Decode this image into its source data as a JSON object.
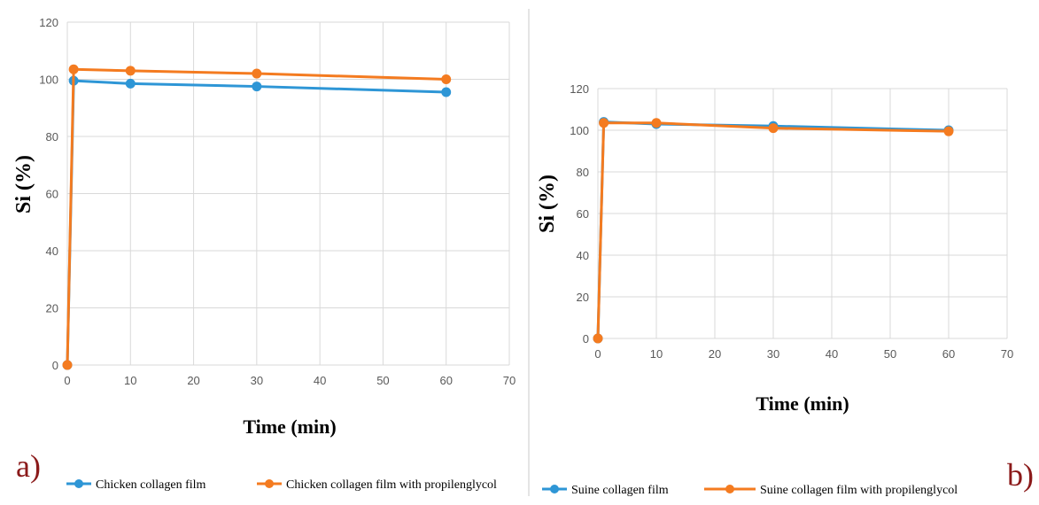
{
  "colors": {
    "blue": "#2E96D6",
    "orange": "#F47B20",
    "grid": "#D9D9D9",
    "divider": "#C8C8C8"
  },
  "chart_data": [
    {
      "type": "line",
      "panel_label": "a)",
      "xlabel": "Time (min)",
      "ylabel": "Si (%)",
      "xlim": [
        0,
        70
      ],
      "ylim": [
        0,
        120
      ],
      "xticks": [
        0,
        10,
        20,
        30,
        40,
        50,
        60,
        70
      ],
      "yticks": [
        0,
        20,
        40,
        60,
        80,
        100,
        120
      ],
      "grid": true,
      "legend_position": "bottom",
      "series": [
        {
          "name": "Chicken collagen film",
          "color": "#2E96D6",
          "x": [
            0,
            1,
            10,
            30,
            60
          ],
          "y": [
            0,
            99.5,
            98.5,
            97.5,
            95.5
          ]
        },
        {
          "name": "Chicken collagen film with propilenglycol",
          "color": "#F47B20",
          "x": [
            0,
            1,
            10,
            30,
            60
          ],
          "y": [
            0,
            103.5,
            103,
            102,
            100
          ]
        }
      ]
    },
    {
      "type": "line",
      "panel_label": "b)",
      "xlabel": "Time (min)",
      "ylabel": "Si (%)",
      "xlim": [
        0,
        70
      ],
      "ylim": [
        0,
        120
      ],
      "xticks": [
        0,
        10,
        20,
        30,
        40,
        50,
        60,
        70
      ],
      "yticks": [
        0,
        20,
        40,
        60,
        80,
        100,
        120
      ],
      "grid": true,
      "legend_position": "bottom",
      "series": [
        {
          "name": "Suine collagen film",
          "color": "#2E96D6",
          "x": [
            0,
            1,
            10,
            30,
            60
          ],
          "y": [
            0,
            104,
            103,
            102,
            100
          ]
        },
        {
          "name": "Suine collagen film with propilenglycol",
          "color": "#F47B20",
          "x": [
            0,
            1,
            10,
            30,
            60
          ],
          "y": [
            0,
            103.5,
            103.5,
            101,
            99.5
          ]
        }
      ]
    }
  ]
}
